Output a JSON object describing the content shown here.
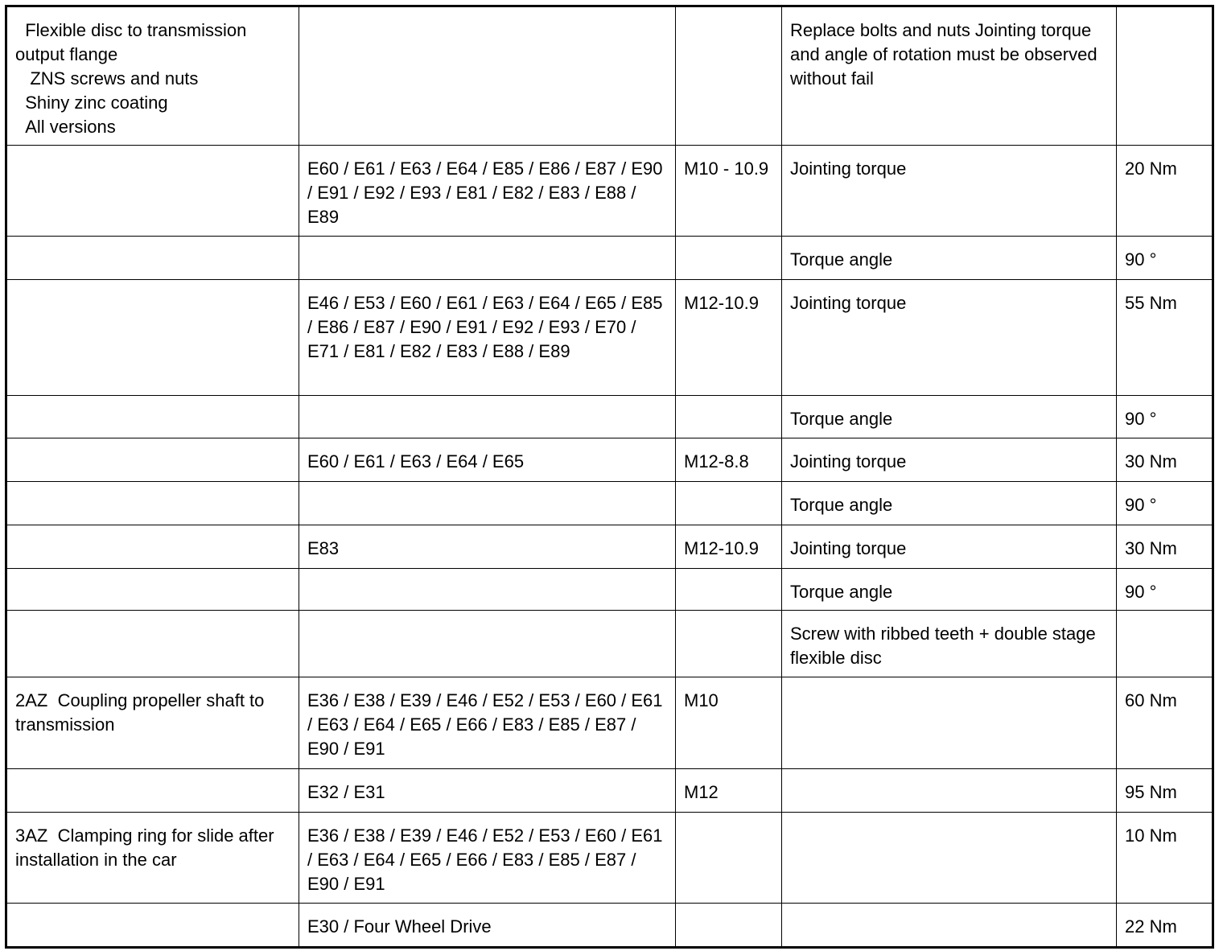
{
  "table": {
    "rows": [
      [
        "  Flexible disc to transmission\noutput flange\n   ZNS screws and nuts\n  Shiny zinc coating\n  All versions",
        "",
        "",
        "Replace bolts and nuts Jointing torque and angle of rotation must be observed without fail",
        ""
      ],
      [
        "",
        "E60 / E61 / E63 / E64 / E85 / E86 / E87 / E90 / E91 / E92 / E93 / E81 / E82 / E83 / E88 / E89",
        "M10 - 10.9",
        "Jointing torque",
        "20 Nm"
      ],
      [
        "",
        "",
        "",
        "Torque angle",
        "90 °"
      ],
      [
        "",
        "E46 / E53 / E60 / E61 / E63 / E64 / E65 / E85 / E86 / E87 / E90 / E91 / E92 / E93 / E70 / E71 / E81 / E82 / E83 / E88 / E89",
        "M12-10.9",
        "Jointing torque",
        "55 Nm"
      ],
      [
        "",
        "",
        "",
        "Torque angle",
        "90 °"
      ],
      [
        "",
        "E60 / E61 / E63 / E64 / E65",
        "M12-8.8",
        "Jointing torque",
        "30 Nm"
      ],
      [
        "",
        "",
        "",
        "Torque angle",
        "90 °"
      ],
      [
        "",
        "E83",
        "M12-10.9",
        "Jointing torque",
        "30 Nm"
      ],
      [
        "",
        "",
        "",
        "Torque angle",
        "90 °"
      ],
      [
        "",
        "",
        "",
        "Screw with ribbed teeth + double stage flexible disc",
        ""
      ],
      [
        "2AZ  Coupling propeller shaft to transmission",
        "E36 / E38 / E39 / E46 / E52 / E53 / E60 / E61 / E63 / E64 / E65 / E66 / E83 / E85 / E87 / E90 / E91",
        "M10",
        "",
        "60 Nm"
      ],
      [
        "",
        "E32 / E31",
        "M12",
        "",
        "95 Nm"
      ],
      [
        "3AZ  Clamping ring for slide after installation in the car",
        "E36 / E38 / E39 / E46 / E52 / E53 / E60 / E61 / E63 / E64 / E65 / E66 / E83 / E85 / E87 / E90 / E91",
        "",
        "",
        "10 Nm"
      ],
      [
        "",
        "E30 / Four Wheel Drive",
        "",
        "",
        "22 Nm"
      ]
    ]
  }
}
